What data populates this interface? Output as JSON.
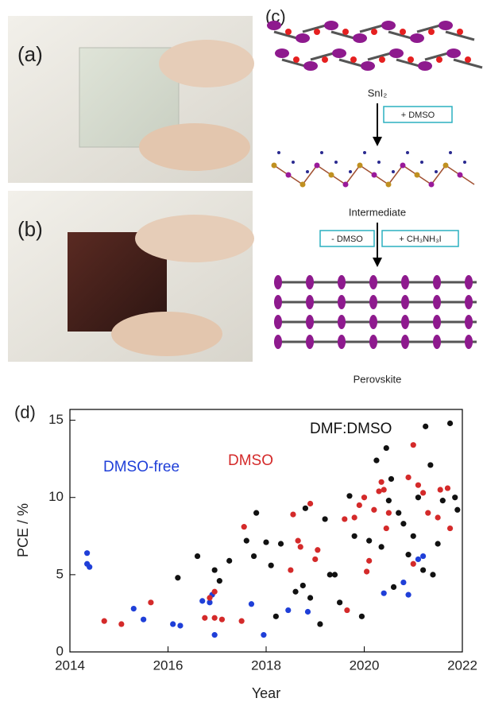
{
  "panels": {
    "a": "(a)",
    "b": "(b)",
    "c": "(c)",
    "d": "(d)"
  },
  "diagram": {
    "step1": "SnI₂",
    "arrow1": "+ DMSO",
    "step2": "Intermediate",
    "arrow2a": "- DMSO",
    "arrow2b": "+ CH₃NH₃I",
    "step3": "Perovskite"
  },
  "chart_data": {
    "type": "scatter",
    "x_label": "Year",
    "y_label": "PCE / %",
    "xlim": [
      2014,
      2022
    ],
    "xticks": [
      2014,
      2016,
      2018,
      2020,
      2022
    ],
    "ylim": [
      0,
      15.7
    ],
    "yticks": [
      0,
      5,
      10,
      15
    ],
    "series": [
      {
        "name": "DMSO-free",
        "color": "#1f3fd8",
        "x": [
          2014.35,
          2014.35,
          2014.4,
          2015.3,
          2015.5,
          2016.1,
          2016.25,
          2016.7,
          2016.85,
          2016.9,
          2016.95,
          2017.7,
          2017.95,
          2018.45,
          2018.85,
          2020.4,
          2020.8,
          2020.9,
          2021.1,
          2021.2
        ],
        "y": [
          6.4,
          5.7,
          5.5,
          2.8,
          2.1,
          1.8,
          1.7,
          3.3,
          3.2,
          3.7,
          1.1,
          3.1,
          1.1,
          2.7,
          2.6,
          3.8,
          4.5,
          3.7,
          6.0,
          6.2
        ]
      },
      {
        "name": "DMSO",
        "color": "#d42a2a",
        "x": [
          2014.7,
          2015.05,
          2015.65,
          2016.75,
          2016.85,
          2016.95,
          2016.95,
          2017.1,
          2017.5,
          2017.55,
          2018.5,
          2018.55,
          2018.65,
          2018.7,
          2018.9,
          2019.0,
          2019.05,
          2019.6,
          2019.65,
          2019.8,
          2019.9,
          2020.0,
          2020.05,
          2020.1,
          2020.2,
          2020.3,
          2020.35,
          2020.4,
          2020.45,
          2020.5,
          2020.9,
          2021.0,
          2021.0,
          2021.1,
          2021.2,
          2021.3,
          2021.5,
          2021.55,
          2021.7,
          2021.75
        ],
        "y": [
          2.0,
          1.8,
          3.2,
          2.2,
          3.5,
          3.9,
          2.2,
          2.1,
          2.0,
          8.1,
          5.3,
          8.9,
          7.2,
          6.8,
          9.6,
          6.0,
          6.6,
          8.6,
          2.7,
          8.7,
          9.5,
          10.0,
          5.2,
          5.9,
          9.2,
          10.4,
          11.0,
          10.5,
          8.0,
          9.0,
          11.3,
          13.4,
          5.7,
          10.8,
          10.3,
          9.0,
          8.7,
          10.5,
          10.6,
          8.0
        ]
      },
      {
        "name": "DMF:DMSO",
        "color": "#111111",
        "x": [
          2016.2,
          2016.6,
          2016.95,
          2017.05,
          2017.25,
          2017.6,
          2017.75,
          2017.8,
          2018.0,
          2018.1,
          2018.2,
          2018.3,
          2018.6,
          2018.75,
          2018.8,
          2018.9,
          2019.1,
          2019.2,
          2019.3,
          2019.4,
          2019.5,
          2019.7,
          2019.8,
          2019.95,
          2020.1,
          2020.25,
          2020.35,
          2020.45,
          2020.5,
          2020.55,
          2020.6,
          2020.7,
          2020.8,
          2020.9,
          2021.0,
          2021.1,
          2021.2,
          2021.25,
          2021.35,
          2021.4,
          2021.5,
          2021.6,
          2021.75,
          2021.85,
          2021.9
        ],
        "y": [
          4.8,
          6.2,
          5.3,
          4.6,
          5.9,
          7.2,
          6.2,
          9.0,
          7.1,
          5.6,
          2.3,
          7.0,
          3.9,
          4.3,
          9.3,
          3.5,
          1.8,
          8.6,
          5.0,
          5.0,
          3.2,
          10.1,
          7.5,
          2.3,
          7.2,
          12.4,
          6.8,
          13.2,
          9.8,
          11.2,
          4.2,
          9.0,
          8.3,
          6.3,
          7.5,
          10.0,
          5.3,
          14.6,
          12.1,
          5.0,
          7.0,
          9.8,
          14.8,
          10.0,
          9.2
        ]
      }
    ]
  }
}
